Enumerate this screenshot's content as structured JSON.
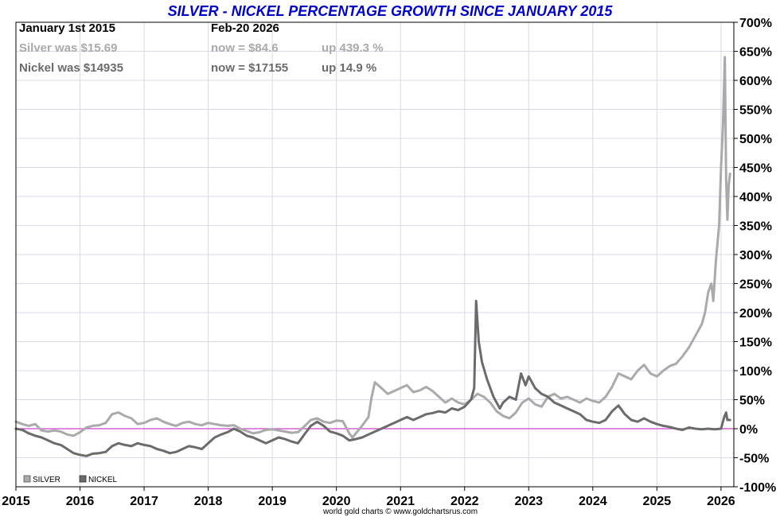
{
  "colors": {
    "title": "#0000cc",
    "silver": "#aaaaaa",
    "nickel": "#6b6b6b",
    "zero_line": "#cc44cc",
    "grid": "#d8d8ec",
    "frame": "#000000"
  },
  "header": {
    "col1_date": "January 1st 2015",
    "col2_date": "Feb-20  2026",
    "silver_was": "Silver was $15.69",
    "silver_now": "now = $84.6",
    "silver_up": "up 439.3 %",
    "nickel_was": "Nickel was $14935",
    "nickel_now": "now = $17155",
    "nickel_up": "up 14.9 %"
  },
  "legend": {
    "silver": "SILVER",
    "nickel": "NICKEL"
  },
  "credit": "world gold charts © www.goldchartsrus.com",
  "chart_data": {
    "type": "line",
    "title": "SILVER - NICKEL PERCENTAGE GROWTH SINCE JANUARY 2015",
    "xlabel": "",
    "ylabel": "",
    "y_axis_side": "right",
    "y_unit": "%",
    "ylim": [
      -100,
      700
    ],
    "yticks": [
      -100,
      -50,
      0,
      50,
      100,
      150,
      200,
      250,
      300,
      350,
      400,
      450,
      500,
      550,
      600,
      650,
      700
    ],
    "ytick_labels": [
      "-100%",
      "-50%",
      "0%",
      "50%",
      "100%",
      "150%",
      "200%",
      "250%",
      "300%",
      "350%",
      "400%",
      "450%",
      "500%",
      "550%",
      "600%",
      "650%",
      "700%"
    ],
    "xlim": [
      2015.0,
      2026.2
    ],
    "xticks": [
      2015,
      2016,
      2017,
      2018,
      2019,
      2020,
      2021,
      2022,
      2023,
      2024,
      2025,
      2026
    ],
    "xtick_labels": [
      "2015",
      "2016",
      "2017",
      "2018",
      "2019",
      "2020",
      "2021",
      "2022",
      "2023",
      "2024",
      "2025",
      "2026"
    ],
    "grid": true,
    "legend_position": "bottom-left",
    "series": [
      {
        "name": "SILVER",
        "points": [
          [
            2015.0,
            12
          ],
          [
            2015.1,
            8
          ],
          [
            2015.2,
            5
          ],
          [
            2015.3,
            8
          ],
          [
            2015.4,
            -3
          ],
          [
            2015.5,
            -5
          ],
          [
            2015.6,
            -3
          ],
          [
            2015.7,
            -5
          ],
          [
            2015.8,
            -10
          ],
          [
            2015.9,
            -12
          ],
          [
            2016.0,
            -6
          ],
          [
            2016.1,
            2
          ],
          [
            2016.2,
            5
          ],
          [
            2016.3,
            6
          ],
          [
            2016.4,
            10
          ],
          [
            2016.5,
            25
          ],
          [
            2016.6,
            28
          ],
          [
            2016.7,
            22
          ],
          [
            2016.8,
            18
          ],
          [
            2016.9,
            8
          ],
          [
            2017.0,
            10
          ],
          [
            2017.1,
            15
          ],
          [
            2017.2,
            18
          ],
          [
            2017.3,
            12
          ],
          [
            2017.4,
            8
          ],
          [
            2017.5,
            5
          ],
          [
            2017.6,
            10
          ],
          [
            2017.7,
            12
          ],
          [
            2017.8,
            8
          ],
          [
            2017.9,
            6
          ],
          [
            2018.0,
            10
          ],
          [
            2018.1,
            8
          ],
          [
            2018.2,
            6
          ],
          [
            2018.3,
            5
          ],
          [
            2018.4,
            6
          ],
          [
            2018.5,
            0
          ],
          [
            2018.6,
            -4
          ],
          [
            2018.7,
            -8
          ],
          [
            2018.8,
            -6
          ],
          [
            2018.9,
            -2
          ],
          [
            2019.0,
            -1
          ],
          [
            2019.1,
            -3
          ],
          [
            2019.2,
            -5
          ],
          [
            2019.3,
            -7
          ],
          [
            2019.4,
            -6
          ],
          [
            2019.5,
            4
          ],
          [
            2019.6,
            15
          ],
          [
            2019.7,
            18
          ],
          [
            2019.8,
            12
          ],
          [
            2019.9,
            10
          ],
          [
            2020.0,
            14
          ],
          [
            2020.1,
            13
          ],
          [
            2020.2,
            -8
          ],
          [
            2020.25,
            -15
          ],
          [
            2020.4,
            5
          ],
          [
            2020.5,
            20
          ],
          [
            2020.55,
            55
          ],
          [
            2020.6,
            80
          ],
          [
            2020.7,
            70
          ],
          [
            2020.8,
            60
          ],
          [
            2020.9,
            65
          ],
          [
            2021.0,
            70
          ],
          [
            2021.1,
            75
          ],
          [
            2021.2,
            63
          ],
          [
            2021.3,
            66
          ],
          [
            2021.4,
            72
          ],
          [
            2021.5,
            65
          ],
          [
            2021.6,
            55
          ],
          [
            2021.7,
            45
          ],
          [
            2021.8,
            52
          ],
          [
            2021.9,
            45
          ],
          [
            2022.0,
            42
          ],
          [
            2022.1,
            50
          ],
          [
            2022.2,
            60
          ],
          [
            2022.3,
            55
          ],
          [
            2022.4,
            45
          ],
          [
            2022.5,
            30
          ],
          [
            2022.6,
            22
          ],
          [
            2022.7,
            18
          ],
          [
            2022.8,
            28
          ],
          [
            2022.9,
            45
          ],
          [
            2023.0,
            52
          ],
          [
            2023.1,
            42
          ],
          [
            2023.2,
            38
          ],
          [
            2023.3,
            55
          ],
          [
            2023.4,
            60
          ],
          [
            2023.5,
            52
          ],
          [
            2023.6,
            55
          ],
          [
            2023.7,
            50
          ],
          [
            2023.8,
            45
          ],
          [
            2023.9,
            52
          ],
          [
            2024.0,
            48
          ],
          [
            2024.1,
            45
          ],
          [
            2024.2,
            55
          ],
          [
            2024.3,
            72
          ],
          [
            2024.4,
            95
          ],
          [
            2024.5,
            90
          ],
          [
            2024.6,
            85
          ],
          [
            2024.7,
            100
          ],
          [
            2024.8,
            110
          ],
          [
            2024.9,
            95
          ],
          [
            2025.0,
            90
          ],
          [
            2025.1,
            100
          ],
          [
            2025.2,
            108
          ],
          [
            2025.3,
            112
          ],
          [
            2025.4,
            125
          ],
          [
            2025.5,
            140
          ],
          [
            2025.6,
            160
          ],
          [
            2025.7,
            180
          ],
          [
            2025.75,
            200
          ],
          [
            2025.8,
            235
          ],
          [
            2025.85,
            250
          ],
          [
            2025.88,
            220
          ],
          [
            2025.92,
            290
          ],
          [
            2025.97,
            350
          ],
          [
            2026.0,
            450
          ],
          [
            2026.03,
            520
          ],
          [
            2026.06,
            640
          ],
          [
            2026.08,
            430
          ],
          [
            2026.1,
            360
          ],
          [
            2026.12,
            420
          ],
          [
            2026.14,
            439
          ]
        ]
      },
      {
        "name": "NICKEL",
        "points": [
          [
            2015.0,
            0
          ],
          [
            2015.1,
            -2
          ],
          [
            2015.2,
            -8
          ],
          [
            2015.3,
            -12
          ],
          [
            2015.4,
            -15
          ],
          [
            2015.5,
            -20
          ],
          [
            2015.6,
            -25
          ],
          [
            2015.7,
            -28
          ],
          [
            2015.8,
            -35
          ],
          [
            2015.9,
            -42
          ],
          [
            2016.0,
            -45
          ],
          [
            2016.1,
            -47
          ],
          [
            2016.2,
            -43
          ],
          [
            2016.3,
            -42
          ],
          [
            2016.4,
            -40
          ],
          [
            2016.5,
            -30
          ],
          [
            2016.6,
            -25
          ],
          [
            2016.7,
            -28
          ],
          [
            2016.8,
            -30
          ],
          [
            2016.9,
            -25
          ],
          [
            2017.0,
            -28
          ],
          [
            2017.1,
            -30
          ],
          [
            2017.2,
            -35
          ],
          [
            2017.3,
            -38
          ],
          [
            2017.4,
            -42
          ],
          [
            2017.5,
            -40
          ],
          [
            2017.6,
            -35
          ],
          [
            2017.7,
            -30
          ],
          [
            2017.8,
            -32
          ],
          [
            2017.9,
            -35
          ],
          [
            2018.0,
            -25
          ],
          [
            2018.1,
            -15
          ],
          [
            2018.2,
            -10
          ],
          [
            2018.3,
            -6
          ],
          [
            2018.4,
            0
          ],
          [
            2018.5,
            -5
          ],
          [
            2018.6,
            -12
          ],
          [
            2018.7,
            -15
          ],
          [
            2018.8,
            -20
          ],
          [
            2018.9,
            -25
          ],
          [
            2019.0,
            -20
          ],
          [
            2019.1,
            -15
          ],
          [
            2019.2,
            -18
          ],
          [
            2019.3,
            -22
          ],
          [
            2019.4,
            -25
          ],
          [
            2019.5,
            -10
          ],
          [
            2019.6,
            5
          ],
          [
            2019.7,
            12
          ],
          [
            2019.8,
            5
          ],
          [
            2019.9,
            -5
          ],
          [
            2020.0,
            -8
          ],
          [
            2020.1,
            -12
          ],
          [
            2020.2,
            -20
          ],
          [
            2020.3,
            -18
          ],
          [
            2020.4,
            -15
          ],
          [
            2020.5,
            -10
          ],
          [
            2020.6,
            -5
          ],
          [
            2020.7,
            0
          ],
          [
            2020.8,
            5
          ],
          [
            2020.9,
            10
          ],
          [
            2021.0,
            15
          ],
          [
            2021.1,
            20
          ],
          [
            2021.2,
            15
          ],
          [
            2021.3,
            20
          ],
          [
            2021.4,
            25
          ],
          [
            2021.5,
            27
          ],
          [
            2021.6,
            30
          ],
          [
            2021.7,
            28
          ],
          [
            2021.8,
            35
          ],
          [
            2021.9,
            32
          ],
          [
            2022.0,
            38
          ],
          [
            2022.1,
            50
          ],
          [
            2022.15,
            70
          ],
          [
            2022.18,
            220
          ],
          [
            2022.22,
            150
          ],
          [
            2022.27,
            115
          ],
          [
            2022.35,
            85
          ],
          [
            2022.45,
            55
          ],
          [
            2022.55,
            35
          ],
          [
            2022.6,
            45
          ],
          [
            2022.7,
            55
          ],
          [
            2022.8,
            50
          ],
          [
            2022.88,
            95
          ],
          [
            2022.95,
            75
          ],
          [
            2023.0,
            90
          ],
          [
            2023.1,
            70
          ],
          [
            2023.2,
            60
          ],
          [
            2023.3,
            55
          ],
          [
            2023.4,
            45
          ],
          [
            2023.5,
            40
          ],
          [
            2023.6,
            35
          ],
          [
            2023.7,
            30
          ],
          [
            2023.8,
            25
          ],
          [
            2023.9,
            15
          ],
          [
            2024.0,
            12
          ],
          [
            2024.1,
            10
          ],
          [
            2024.2,
            15
          ],
          [
            2024.3,
            30
          ],
          [
            2024.4,
            40
          ],
          [
            2024.5,
            25
          ],
          [
            2024.6,
            15
          ],
          [
            2024.7,
            12
          ],
          [
            2024.8,
            18
          ],
          [
            2024.9,
            12
          ],
          [
            2025.0,
            8
          ],
          [
            2025.1,
            5
          ],
          [
            2025.2,
            3
          ],
          [
            2025.3,
            0
          ],
          [
            2025.4,
            -2
          ],
          [
            2025.5,
            2
          ],
          [
            2025.6,
            0
          ],
          [
            2025.7,
            -1
          ],
          [
            2025.8,
            0
          ],
          [
            2025.9,
            -1
          ],
          [
            2026.0,
            0
          ],
          [
            2026.05,
            20
          ],
          [
            2026.08,
            28
          ],
          [
            2026.1,
            15
          ],
          [
            2026.14,
            15
          ]
        ]
      }
    ]
  }
}
